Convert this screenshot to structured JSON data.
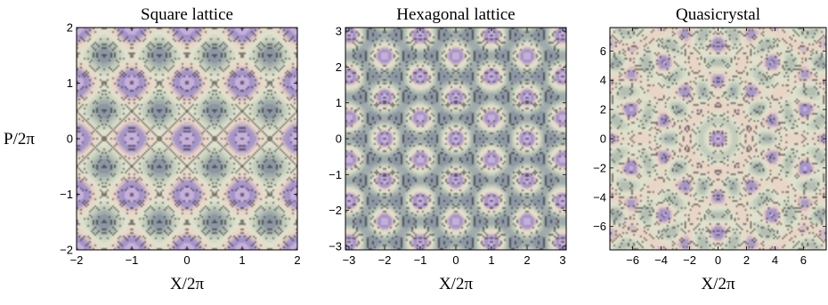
{
  "chart_data": [
    {
      "type": "heatmap",
      "title": "Square lattice",
      "xlabel": "X/2π",
      "ylabel": "P/2π",
      "xlim": [
        -2,
        2
      ],
      "ylim": [
        -2,
        2
      ],
      "xticks": [
        "-2",
        "-1",
        "0",
        "1",
        "2"
      ],
      "yticks": [
        "-2",
        "-1",
        "0",
        "1",
        "2"
      ],
      "pattern": "square",
      "color_low": "#8d97a3",
      "color_high": "#e8cbe6"
    },
    {
      "type": "heatmap",
      "title": "Hexagonal lattice",
      "xlabel": "X/2π",
      "ylabel": "",
      "xlim": [
        -3.1,
        3.1
      ],
      "ylim": [
        -3.1,
        3.1
      ],
      "xticks": [
        "-3",
        "-2",
        "-1",
        "0",
        "1",
        "2",
        "3"
      ],
      "yticks": [
        "-3",
        "-2",
        "-1",
        "0",
        "1",
        "2",
        "3"
      ],
      "pattern": "hexagonal",
      "color_low": "#8d97a3",
      "color_high": "#e8cbe6"
    },
    {
      "type": "heatmap",
      "title": "Quasicrystal",
      "xlabel": "X/2π",
      "ylabel": "",
      "xlim": [
        -7.6,
        7.6
      ],
      "ylim": [
        -7.6,
        7.6
      ],
      "xticks": [
        "-6",
        "-4",
        "-2",
        "0",
        "2",
        "4",
        "6"
      ],
      "yticks": [
        "-6",
        "-4",
        "-2",
        "0",
        "2",
        "4",
        "6"
      ],
      "pattern": "quasicrystal",
      "color_low": "#8d97a3",
      "color_high": "#e8cbe6"
    }
  ]
}
